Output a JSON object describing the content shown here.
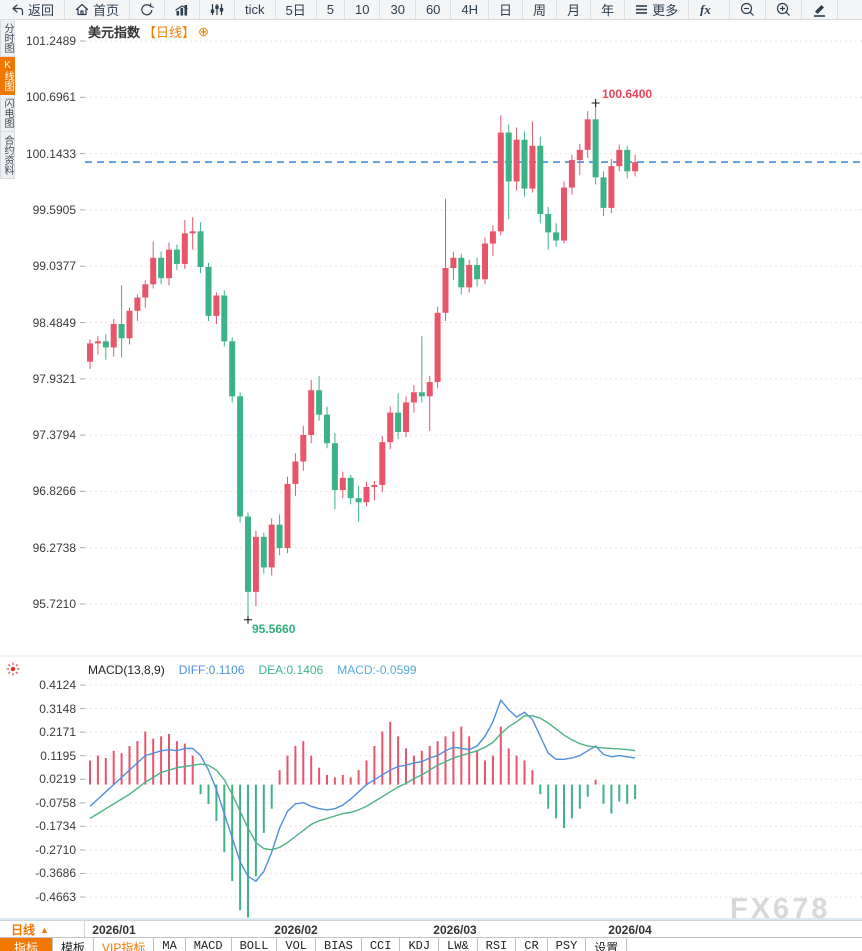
{
  "toolbar": {
    "items": [
      {
        "icon": "back-icon",
        "label": "返回"
      },
      {
        "icon": "home-icon",
        "label": "首页"
      },
      {
        "icon": "refresh-icon",
        "label": ""
      },
      {
        "icon": "column-chart-icon",
        "label": ""
      },
      {
        "icon": "candlestick-icon",
        "label": ""
      },
      {
        "icon": "",
        "label": "tick"
      },
      {
        "icon": "",
        "label": "5日"
      },
      {
        "icon": "",
        "label": "5"
      },
      {
        "icon": "",
        "label": "10"
      },
      {
        "icon": "",
        "label": "30"
      },
      {
        "icon": "",
        "label": "60"
      },
      {
        "icon": "",
        "label": "4H"
      },
      {
        "icon": "",
        "label": "日"
      },
      {
        "icon": "",
        "label": "周"
      },
      {
        "icon": "",
        "label": "月"
      },
      {
        "icon": "",
        "label": "年"
      },
      {
        "icon": "menu-icon",
        "label": "更多"
      },
      {
        "icon": "fx-icon",
        "label": ""
      },
      {
        "icon": "zoom-out-icon",
        "label": ""
      },
      {
        "icon": "zoom-in-icon",
        "label": ""
      },
      {
        "icon": "pen-icon",
        "label": ""
      }
    ]
  },
  "sidebar": {
    "items": [
      {
        "label": "分时图",
        "active": false
      },
      {
        "label": "K线图",
        "active": true
      },
      {
        "label": "闪电图",
        "active": false
      },
      {
        "label": "合约资料",
        "active": false
      }
    ]
  },
  "chart_header": {
    "symbol": "美元指数",
    "period_tag": "【日线】",
    "add_icon": "⊕"
  },
  "macd_header": {
    "name": "MACD(13,8,9)",
    "diff_label": "DIFF:0.1106",
    "dea_label": "DEA:0.1406",
    "macd_label": "MACD:-0.0599"
  },
  "annotations": {
    "high_label": "100.6400",
    "low_label": "95.5660"
  },
  "watermark": "FX678",
  "bottom": {
    "period_selector": "日线",
    "period_arrow": "▲",
    "tabs": [
      {
        "label": "指标",
        "style": "active"
      },
      {
        "label": "模板",
        "style": "cn"
      },
      {
        "label": "VIP指标",
        "style": "vip"
      },
      {
        "label": "MA",
        "style": ""
      },
      {
        "label": "MACD",
        "style": ""
      },
      {
        "label": "BOLL",
        "style": ""
      },
      {
        "label": "VOL",
        "style": ""
      },
      {
        "label": "BIAS",
        "style": ""
      },
      {
        "label": "CCI",
        "style": ""
      },
      {
        "label": "KDJ",
        "style": ""
      },
      {
        "label": "LW&",
        "style": ""
      },
      {
        "label": "RSI",
        "style": ""
      },
      {
        "label": "CR",
        "style": ""
      },
      {
        "label": "PSY",
        "style": ""
      },
      {
        "label": "设置",
        "style": "cn"
      }
    ]
  },
  "chart_data": {
    "type": "candlestick",
    "title": "美元指数 日线 (US Dollar Index, daily)",
    "price_axis": {
      "labels": [
        "101.2489",
        "100.6961",
        "100.1433",
        "99.5905",
        "99.0377",
        "98.4849",
        "97.9321",
        "97.3794",
        "96.8266",
        "96.2738",
        "95.7210"
      ],
      "max": 101.2489,
      "step": 0.5528
    },
    "x_axis": {
      "labels": [
        "2026/01",
        "2026/02",
        "2026/03",
        "2026/04"
      ],
      "positions": [
        114,
        296,
        455,
        630
      ]
    },
    "price_line": 100.06,
    "high_marker": {
      "index": 64,
      "value": 100.64,
      "label": "100.6400"
    },
    "low_marker": {
      "index": 20,
      "value": 95.566,
      "label": "95.5660"
    },
    "colors": {
      "up": "#e8556a",
      "down": "#3cb287",
      "diff_line": "#4e8fdd",
      "dea_line": "#4cb383",
      "price_dash_line": "#1f78e0",
      "grid": "#f3dfe2",
      "accent": "#f07800"
    },
    "candles": [
      [
        98.1,
        98.32,
        98.03,
        98.28
      ],
      [
        98.28,
        98.35,
        98.17,
        98.3
      ],
      [
        98.3,
        98.37,
        98.12,
        98.24
      ],
      [
        98.24,
        98.52,
        98.15,
        98.47
      ],
      [
        98.47,
        98.85,
        98.14,
        98.33
      ],
      [
        98.33,
        98.63,
        98.27,
        98.6
      ],
      [
        98.6,
        98.76,
        98.5,
        98.73
      ],
      [
        98.73,
        98.9,
        98.63,
        98.86
      ],
      [
        98.86,
        99.28,
        98.82,
        99.12
      ],
      [
        99.12,
        99.18,
        98.86,
        98.92
      ],
      [
        98.92,
        99.27,
        98.85,
        99.2
      ],
      [
        99.2,
        99.25,
        99.0,
        99.06
      ],
      [
        99.06,
        99.49,
        99.01,
        99.36
      ],
      [
        99.36,
        99.52,
        99.2,
        99.38
      ],
      [
        99.38,
        99.47,
        98.97,
        99.03
      ],
      [
        99.03,
        99.07,
        98.5,
        98.55
      ],
      [
        98.55,
        98.78,
        98.47,
        98.75
      ],
      [
        98.75,
        98.8,
        98.25,
        98.3
      ],
      [
        98.3,
        98.34,
        97.7,
        97.76
      ],
      [
        97.76,
        97.8,
        96.52,
        96.58
      ],
      [
        96.58,
        96.62,
        95.566,
        95.84
      ],
      [
        95.84,
        96.44,
        95.7,
        96.38
      ],
      [
        96.38,
        96.42,
        96.02,
        96.08
      ],
      [
        96.08,
        96.56,
        96.0,
        96.5
      ],
      [
        96.5,
        96.6,
        96.2,
        96.27
      ],
      [
        96.27,
        96.97,
        96.22,
        96.9
      ],
      [
        96.9,
        97.2,
        96.78,
        97.12
      ],
      [
        97.12,
        97.47,
        97.03,
        97.38
      ],
      [
        97.38,
        97.92,
        97.3,
        97.82
      ],
      [
        97.82,
        97.96,
        97.52,
        97.58
      ],
      [
        97.58,
        97.66,
        97.25,
        97.3
      ],
      [
        97.3,
        97.4,
        96.65,
        96.84
      ],
      [
        96.84,
        97.02,
        96.76,
        96.96
      ],
      [
        96.96,
        96.99,
        96.7,
        96.76
      ],
      [
        96.76,
        96.88,
        96.53,
        96.72
      ],
      [
        96.72,
        96.92,
        96.68,
        96.87
      ],
      [
        96.87,
        96.93,
        96.74,
        96.89
      ],
      [
        96.89,
        97.37,
        96.82,
        97.31
      ],
      [
        97.31,
        97.66,
        97.24,
        97.6
      ],
      [
        97.6,
        97.79,
        97.34,
        97.41
      ],
      [
        97.41,
        97.76,
        97.36,
        97.7
      ],
      [
        97.7,
        97.87,
        97.6,
        97.8
      ],
      [
        97.8,
        98.35,
        97.7,
        97.76
      ],
      [
        97.76,
        97.96,
        97.42,
        97.9
      ],
      [
        97.9,
        98.64,
        97.84,
        98.58
      ],
      [
        98.58,
        99.7,
        98.5,
        99.02
      ],
      [
        99.02,
        99.18,
        98.9,
        99.12
      ],
      [
        99.12,
        99.16,
        98.76,
        98.83
      ],
      [
        98.83,
        99.1,
        98.78,
        99.05
      ],
      [
        99.05,
        99.12,
        98.84,
        98.91
      ],
      [
        98.91,
        99.32,
        98.86,
        99.26
      ],
      [
        99.26,
        99.44,
        99.14,
        99.38
      ],
      [
        99.38,
        100.52,
        99.34,
        100.35
      ],
      [
        100.35,
        100.43,
        99.5,
        99.87
      ],
      [
        99.87,
        100.4,
        99.78,
        100.28
      ],
      [
        100.28,
        100.36,
        99.72,
        99.8
      ],
      [
        99.8,
        100.46,
        99.76,
        100.22
      ],
      [
        100.22,
        100.31,
        99.46,
        99.55
      ],
      [
        99.55,
        99.62,
        99.2,
        99.37
      ],
      [
        99.37,
        99.46,
        99.23,
        99.29
      ],
      [
        99.29,
        99.87,
        99.26,
        99.81
      ],
      [
        99.81,
        100.13,
        99.74,
        100.08
      ],
      [
        100.08,
        100.24,
        99.93,
        100.18
      ],
      [
        100.18,
        100.56,
        100.1,
        100.48
      ],
      [
        100.48,
        100.64,
        99.84,
        99.91
      ],
      [
        99.91,
        99.97,
        99.53,
        99.61
      ],
      [
        99.61,
        100.09,
        99.56,
        100.02
      ],
      [
        100.02,
        100.23,
        99.97,
        100.18
      ],
      [
        100.18,
        100.22,
        99.9,
        99.97
      ],
      [
        99.97,
        100.13,
        99.92,
        100.06
      ]
    ],
    "macd": {
      "params": "(13,8,9)",
      "diff": 0.1106,
      "dea": 0.1406,
      "macd": -0.0599,
      "axis_labels": [
        "0.4124",
        "0.3148",
        "0.2171",
        "0.1195",
        "0.0219",
        "-0.0758",
        "-0.1734",
        "-0.2710",
        "-0.3686",
        "-0.4663"
      ],
      "hist": [
        0.1,
        0.12,
        0.11,
        0.14,
        0.13,
        0.16,
        0.18,
        0.22,
        0.19,
        0.2,
        0.21,
        0.18,
        0.17,
        0.12,
        -0.04,
        -0.08,
        -0.15,
        -0.28,
        -0.4,
        -0.52,
        -0.55,
        -0.38,
        -0.2,
        -0.1,
        0.06,
        0.12,
        0.16,
        0.18,
        0.12,
        0.07,
        0.04,
        0.03,
        0.04,
        0.03,
        0.06,
        0.1,
        0.16,
        0.22,
        0.26,
        0.2,
        0.15,
        0.12,
        0.14,
        0.16,
        0.18,
        0.2,
        0.22,
        0.24,
        0.2,
        0.14,
        0.1,
        0.12,
        0.24,
        0.15,
        0.12,
        0.1,
        0.06,
        -0.04,
        -0.1,
        -0.14,
        -0.18,
        -0.14,
        -0.1,
        -0.05,
        0.02,
        -0.08,
        -0.12,
        -0.07,
        -0.08,
        -0.0599
      ],
      "diff_series": [
        -0.09,
        -0.06,
        -0.03,
        0.0,
        0.03,
        0.06,
        0.09,
        0.12,
        0.13,
        0.14,
        0.145,
        0.14,
        0.15,
        0.15,
        0.12,
        0.06,
        -0.02,
        -0.12,
        -0.22,
        -0.32,
        -0.38,
        -0.4,
        -0.36,
        -0.28,
        -0.18,
        -0.11,
        -0.08,
        -0.075,
        -0.09,
        -0.1,
        -0.105,
        -0.1,
        -0.085,
        -0.06,
        -0.03,
        0.0,
        0.02,
        0.04,
        0.06,
        0.075,
        0.08,
        0.09,
        0.095,
        0.11,
        0.12,
        0.14,
        0.155,
        0.15,
        0.145,
        0.16,
        0.2,
        0.26,
        0.35,
        0.31,
        0.28,
        0.3,
        0.27,
        0.2,
        0.13,
        0.105,
        0.105,
        0.11,
        0.12,
        0.14,
        0.16,
        0.125,
        0.115,
        0.12,
        0.115,
        0.1106
      ],
      "dea_series": [
        -0.14,
        -0.12,
        -0.1,
        -0.08,
        -0.06,
        -0.04,
        -0.015,
        0.01,
        0.03,
        0.05,
        0.06,
        0.07,
        0.075,
        0.08,
        0.085,
        0.08,
        0.06,
        0.02,
        -0.04,
        -0.11,
        -0.18,
        -0.24,
        -0.265,
        -0.27,
        -0.26,
        -0.24,
        -0.215,
        -0.19,
        -0.165,
        -0.15,
        -0.14,
        -0.13,
        -0.12,
        -0.115,
        -0.105,
        -0.09,
        -0.07,
        -0.05,
        -0.03,
        -0.01,
        0.005,
        0.025,
        0.04,
        0.06,
        0.08,
        0.095,
        0.11,
        0.12,
        0.13,
        0.14,
        0.155,
        0.175,
        0.21,
        0.24,
        0.26,
        0.285,
        0.285,
        0.275,
        0.255,
        0.23,
        0.205,
        0.185,
        0.17,
        0.16,
        0.155,
        0.152,
        0.15,
        0.148,
        0.145,
        0.1406
      ]
    }
  }
}
